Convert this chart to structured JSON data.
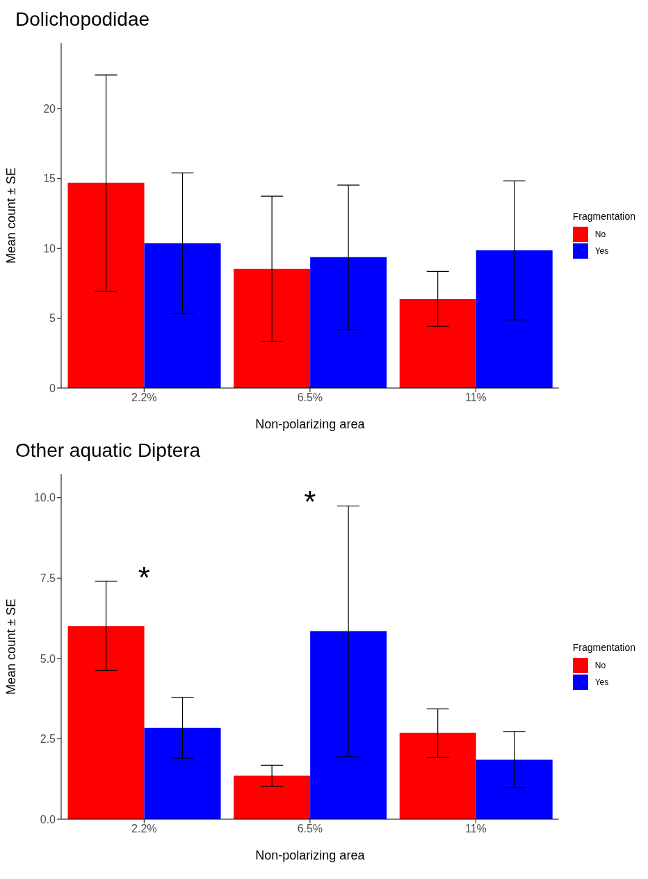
{
  "chart_data": [
    {
      "type": "bar",
      "title": "Dolichopodidae",
      "xlabel": "Non-polarizing area",
      "ylabel": "Mean count ± SE",
      "legend_title": "Fragmentation",
      "legend": "right",
      "categories": [
        "2.2%",
        "6.5%",
        "11%"
      ],
      "ylim": [
        0,
        24.7
      ],
      "yticks": [
        0,
        5,
        10,
        15,
        20
      ],
      "series": [
        {
          "name": "No",
          "color": "#ff0000",
          "values": [
            14.7,
            8.53,
            6.37
          ],
          "errors": [
            [
              6.93,
              22.42
            ],
            [
              3.33,
              13.74
            ],
            [
              4.42,
              8.35
            ]
          ]
        },
        {
          "name": "Yes",
          "color": "#0000ff",
          "values": [
            10.37,
            9.37,
            9.86
          ],
          "errors": [
            [
              5.33,
              15.4
            ],
            [
              4.16,
              14.53
            ],
            [
              4.88,
              14.84
            ]
          ]
        }
      ]
    },
    {
      "type": "bar",
      "title": "Other aquatic Diptera",
      "xlabel": "Non-polarizing area",
      "ylabel": "Mean count ± SE",
      "legend_title": "Fragmentation",
      "legend": "right",
      "categories": [
        "2.2%",
        "6.5%",
        "11%"
      ],
      "ylim": [
        0,
        10.73
      ],
      "yticks": [
        {
          "value": 0,
          "label": "0.0"
        },
        {
          "value": 2.5,
          "label": "2.5"
        },
        {
          "value": 5,
          "label": "5.0"
        },
        {
          "value": 7.5,
          "label": "7.5"
        },
        {
          "value": 10,
          "label": "10.0"
        }
      ],
      "annotations": [
        "*",
        "*"
      ],
      "series": [
        {
          "name": "No",
          "color": "#ff0000",
          "values": [
            6.01,
            1.35,
            2.69
          ],
          "errors": [
            [
              4.62,
              7.4
            ],
            [
              1.02,
              1.68
            ],
            [
              1.92,
              3.43
            ]
          ]
        },
        {
          "name": "Yes",
          "color": "#0000ff",
          "values": [
            2.84,
            5.85,
            1.85
          ],
          "errors": [
            [
              1.9,
              3.79
            ],
            [
              1.94,
              9.74
            ],
            [
              0.98,
              2.73
            ]
          ]
        }
      ]
    }
  ]
}
